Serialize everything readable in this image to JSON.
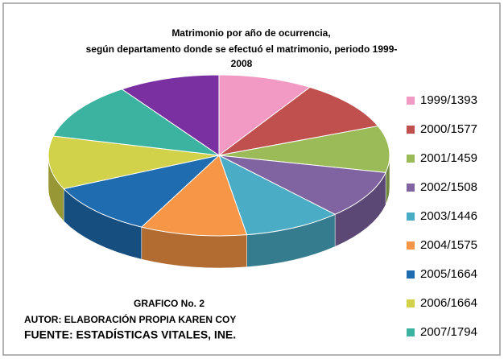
{
  "chart_data": {
    "type": "pie3d",
    "title": [
      "Matrimonio por año de ocurrencia,",
      "según departamento donde se efectuó el matrimonio, periodo 1999-",
      "2008"
    ],
    "categories": [
      "1999/1393",
      "2000/1577",
      "2001/1459",
      "2002/1508",
      "2003/1446",
      "2004/1575",
      "2005/1664",
      "2006/1664",
      "2007/1794",
      null
    ],
    "values": [
      1393,
      1577,
      1459,
      1508,
      1446,
      1575,
      1664,
      1664,
      1794,
      1500
    ],
    "colors": [
      "#f29ac4",
      "#c0504d",
      "#9bbb59",
      "#8064a2",
      "#4bacc6",
      "#f79646",
      "#1f6cb0",
      "#d2d24a",
      "#3cb3a0",
      "#7a30a0"
    ],
    "annotations": [
      "GRAFICO No. 2",
      "AUTOR: ELABORACIÓN PROPIA KAREN COY",
      "FUENTE: ESTADÍSTICAS VITALES, INE."
    ],
    "legend": "right"
  }
}
